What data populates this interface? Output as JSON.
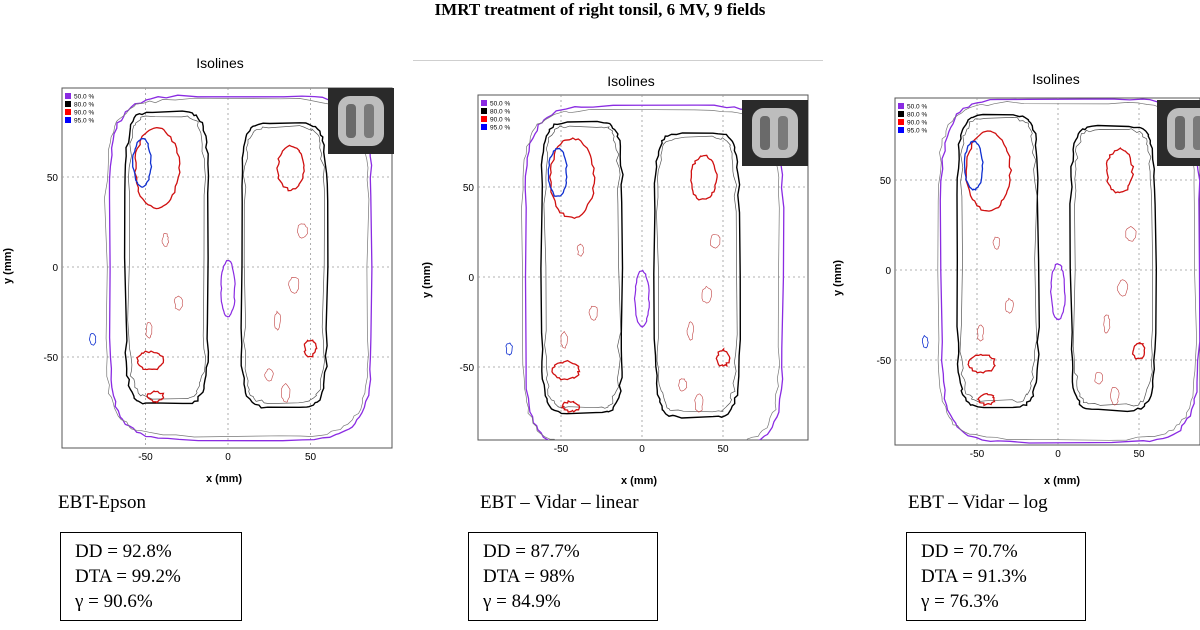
{
  "figure_title": "IMRT treatment of right tonsil, 6 MV, 9 fields",
  "chart_data": [
    {
      "type": "contour",
      "title": "Isolines",
      "xlabel": "x (mm)",
      "ylabel": "y (mm)",
      "xticks": [
        "-50",
        "0",
        "50"
      ],
      "yticks": [
        "50",
        "0",
        "-50"
      ],
      "legend": [
        "50.0 %",
        "80.0 %",
        "90.0 %",
        "95.0 %"
      ],
      "legend_colors": [
        "#8a2be2",
        "#000000",
        "#ff0000",
        "#0000ff"
      ],
      "caption": "EBT-Epson",
      "stats": {
        "dd": "DD = 92.8%",
        "dta": "DTA = 99.2%",
        "gamma": "γ = 90.6%"
      }
    },
    {
      "type": "contour",
      "title": "Isolines",
      "xlabel": "x (mm)",
      "ylabel": "y (mm)",
      "xticks": [
        "-50",
        "0",
        "50"
      ],
      "yticks": [
        "50",
        "0",
        "-50"
      ],
      "legend": [
        "50.0 %",
        "80.0 %",
        "90.0 %",
        "95.0 %"
      ],
      "legend_colors": [
        "#8a2be2",
        "#000000",
        "#ff0000",
        "#0000ff"
      ],
      "caption": "EBT – Vidar – linear",
      "stats": {
        "dd": "DD = 87.7%",
        "dta": "DTA = 98%",
        "gamma": "γ = 84.9%"
      }
    },
    {
      "type": "contour",
      "title": "Isolines",
      "xlabel": "x (mm)",
      "ylabel": "y (mm)",
      "xticks": [
        "-50",
        "0",
        "50"
      ],
      "yticks": [
        "50",
        "0",
        "-50"
      ],
      "legend": [
        "50.0 %",
        "80.0 %",
        "90.0 %",
        "95.0 %"
      ],
      "legend_colors": [
        "#8a2be2",
        "#000000",
        "#ff0000",
        "#0000ff"
      ],
      "caption": "EBT – Vidar – log",
      "stats": {
        "dd": "DD = 70.7%",
        "dta": "DTA = 91.3%",
        "gamma": "γ = 76.3%"
      }
    }
  ]
}
